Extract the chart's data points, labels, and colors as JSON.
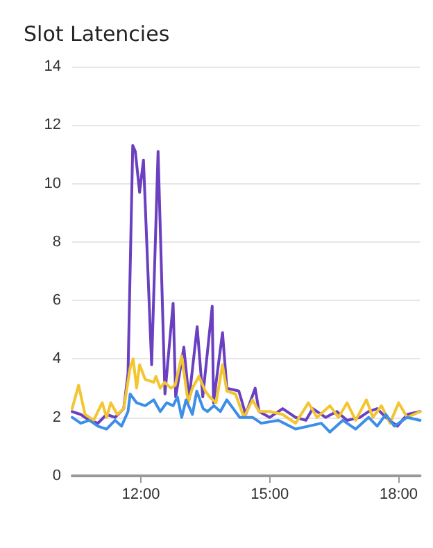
{
  "chart_data": {
    "type": "line",
    "title": "Slot Latencies",
    "grid": "y",
    "marker": "none",
    "line_style": "solid",
    "xlim": [
      10.4,
      18.5
    ],
    "xticks": [
      {
        "value": 12,
        "label": "12:00"
      },
      {
        "value": 15,
        "label": "15:00"
      },
      {
        "value": 18,
        "label": "18:00"
      }
    ],
    "ylim": [
      0,
      14
    ],
    "yticks": [
      0,
      2,
      4,
      6,
      8,
      10,
      12,
      14
    ],
    "series": [
      {
        "color": "#6a3fc0",
        "x": [
          10.4,
          10.6,
          10.8,
          11.0,
          11.2,
          11.4,
          11.6,
          11.7,
          11.81,
          11.87,
          11.97,
          12.06,
          12.25,
          12.4,
          12.56,
          12.75,
          12.81,
          13.0,
          13.12,
          13.31,
          13.44,
          13.66,
          13.69,
          13.9,
          14.0,
          14.28,
          14.44,
          14.66,
          14.75,
          15.0,
          15.3,
          15.6,
          15.84,
          16.0,
          16.3,
          16.56,
          16.8,
          17.1,
          17.3,
          17.5,
          17.7,
          17.97,
          18.2,
          18.5
        ],
        "values": [
          2.2,
          2.1,
          1.9,
          1.8,
          2.1,
          2.0,
          2.3,
          3.5,
          11.3,
          11.1,
          9.7,
          10.8,
          3.8,
          11.1,
          2.8,
          5.9,
          2.7,
          4.4,
          2.6,
          5.1,
          2.7,
          5.8,
          2.5,
          4.9,
          3.0,
          2.9,
          2.1,
          3.0,
          2.2,
          2.0,
          2.3,
          2.0,
          1.9,
          2.3,
          2.0,
          2.2,
          1.9,
          2.0,
          2.2,
          2.3,
          2.0,
          1.7,
          2.1,
          2.2
        ]
      },
      {
        "color": "#f2c531",
        "x": [
          10.4,
          10.55,
          10.7,
          10.9,
          11.1,
          11.2,
          11.3,
          11.45,
          11.6,
          11.75,
          11.82,
          11.9,
          11.97,
          12.1,
          12.3,
          12.35,
          12.45,
          12.55,
          12.7,
          12.8,
          12.95,
          13.1,
          13.2,
          13.35,
          13.5,
          13.6,
          13.75,
          13.9,
          14.0,
          14.2,
          14.4,
          14.6,
          14.75,
          15.0,
          15.3,
          15.6,
          15.9,
          16.1,
          16.4,
          16.6,
          16.8,
          17.0,
          17.25,
          17.4,
          17.6,
          17.8,
          18.0,
          18.2,
          18.5
        ],
        "values": [
          2.3,
          3.1,
          2.1,
          1.9,
          2.5,
          2.0,
          2.5,
          2.1,
          2.3,
          3.7,
          4.0,
          3.0,
          3.8,
          3.3,
          3.2,
          3.4,
          3.0,
          3.2,
          3.0,
          3.1,
          4.1,
          2.5,
          3.0,
          3.4,
          2.9,
          2.7,
          2.5,
          3.8,
          2.9,
          2.8,
          2.0,
          2.6,
          2.2,
          2.2,
          2.1,
          1.8,
          2.5,
          2.0,
          2.4,
          2.0,
          2.5,
          1.9,
          2.6,
          2.0,
          2.4,
          1.8,
          2.5,
          2.0,
          2.2
        ]
      },
      {
        "color": "#3d8ee8",
        "x": [
          10.4,
          10.6,
          10.8,
          11.0,
          11.2,
          11.4,
          11.55,
          11.7,
          11.75,
          11.9,
          12.1,
          12.3,
          12.45,
          12.6,
          12.75,
          12.85,
          12.95,
          13.05,
          13.2,
          13.3,
          13.45,
          13.55,
          13.7,
          13.85,
          14.0,
          14.3,
          14.6,
          14.8,
          15.2,
          15.6,
          15.9,
          16.2,
          16.4,
          16.7,
          17.0,
          17.3,
          17.5,
          17.7,
          17.9,
          18.2,
          18.5
        ],
        "values": [
          2.0,
          1.8,
          1.9,
          1.7,
          1.6,
          1.9,
          1.7,
          2.2,
          2.8,
          2.5,
          2.4,
          2.6,
          2.2,
          2.5,
          2.4,
          2.7,
          2.0,
          2.6,
          2.1,
          2.9,
          2.3,
          2.2,
          2.4,
          2.2,
          2.6,
          2.0,
          2.0,
          1.8,
          1.9,
          1.6,
          1.7,
          1.8,
          1.5,
          1.9,
          1.6,
          2.0,
          1.7,
          2.1,
          1.7,
          2.0,
          1.9
        ]
      }
    ]
  }
}
